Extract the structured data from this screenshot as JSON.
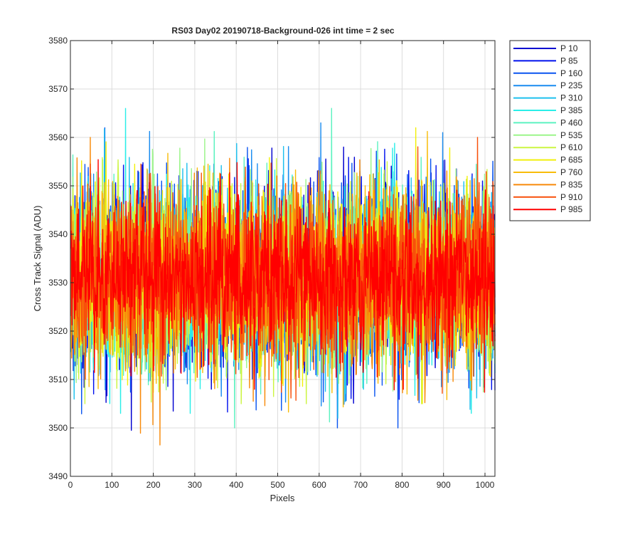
{
  "chart_data": {
    "type": "line",
    "title": "RS03 Day02 20190718-Background-026 int time = 2 sec",
    "xlabel": "Pixels",
    "ylabel": "Cross Track Signal (ADU)",
    "xlim": [
      0,
      1024
    ],
    "ylim": [
      3490,
      3580
    ],
    "x_ticks": [
      0,
      100,
      200,
      300,
      400,
      500,
      600,
      700,
      800,
      900,
      1000
    ],
    "y_ticks": [
      3490,
      3500,
      3510,
      3520,
      3530,
      3540,
      3550,
      3560,
      3570,
      3580
    ],
    "grid": true,
    "legend_position": "outside-top-right",
    "x_range": [
      1,
      1024
    ],
    "series": [
      {
        "name": "P 10",
        "color": "#0000d0",
        "baseline": 3531,
        "noise_sd": 9,
        "min": 3499,
        "max": 3563
      },
      {
        "name": "P 85",
        "color": "#0011ee",
        "baseline": 3531,
        "noise_sd": 9,
        "min": 3497,
        "max": 3564
      },
      {
        "name": "P 160",
        "color": "#0a55f0",
        "baseline": 3531,
        "noise_sd": 9,
        "min": 3500,
        "max": 3562
      },
      {
        "name": "P 235",
        "color": "#1a8cf0",
        "baseline": 3531,
        "noise_sd": 9,
        "min": 3501,
        "max": 3563
      },
      {
        "name": "P 310",
        "color": "#1ec0ee",
        "baseline": 3531,
        "noise_sd": 9,
        "min": 3502,
        "max": 3562
      },
      {
        "name": "P 385",
        "color": "#2aeee8",
        "baseline": 3531,
        "noise_sd": 9,
        "min": 3503,
        "max": 3571
      },
      {
        "name": "P 460",
        "color": "#5cf2c0",
        "baseline": 3531,
        "noise_sd": 9,
        "min": 3500,
        "max": 3566
      },
      {
        "name": "P 535",
        "color": "#9cf58a",
        "baseline": 3531,
        "noise_sd": 9,
        "min": 3503,
        "max": 3566
      },
      {
        "name": "P 610",
        "color": "#ccf542",
        "baseline": 3531,
        "noise_sd": 9,
        "min": 3505,
        "max": 3570
      },
      {
        "name": "P 685",
        "color": "#f2f00a",
        "baseline": 3531,
        "noise_sd": 9,
        "min": 3505,
        "max": 3562
      },
      {
        "name": "P 760",
        "color": "#f8bc0a",
        "baseline": 3531,
        "noise_sd": 9,
        "min": 3500,
        "max": 3562
      },
      {
        "name": "P 835",
        "color": "#f88a0a",
        "baseline": 3531,
        "noise_sd": 9,
        "min": 3494,
        "max": 3560
      },
      {
        "name": "P 910",
        "color": "#f8500a",
        "baseline": 3531,
        "noise_sd": 9,
        "min": 3492,
        "max": 3560
      },
      {
        "name": "P 985",
        "color": "#ff0000",
        "baseline": 3531,
        "noise_sd": 8,
        "min": 3495,
        "max": 3559
      }
    ]
  }
}
